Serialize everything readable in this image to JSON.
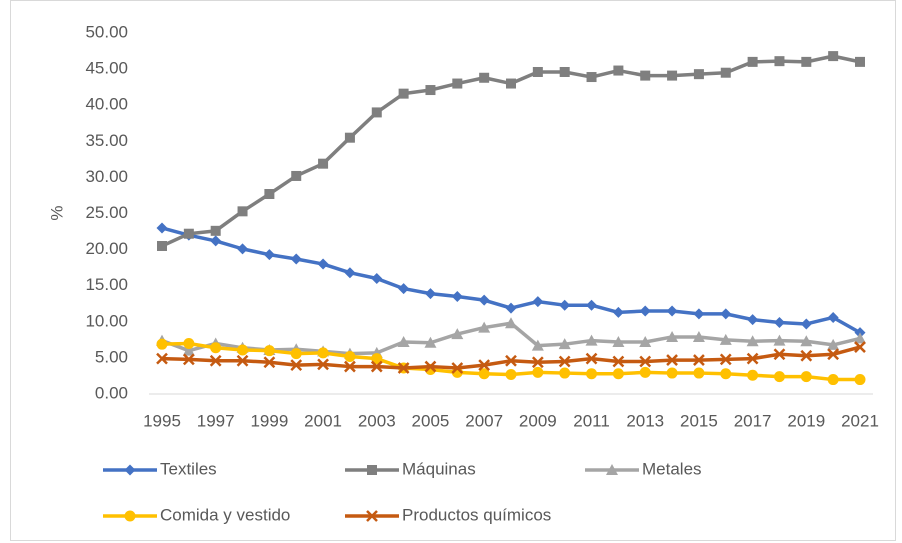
{
  "chart_data": {
    "type": "line",
    "y_label": "%",
    "categories": [
      "1995",
      null,
      "1997",
      null,
      "1999",
      null,
      "2001",
      null,
      "2003",
      null,
      "2005",
      null,
      "2007",
      null,
      "2009",
      null,
      "2011",
      null,
      "2013",
      null,
      "2015",
      null,
      "2017",
      null,
      "2019",
      null,
      "2021"
    ],
    "ylim": [
      0,
      50
    ],
    "yticks": [
      {
        "value": 0,
        "label": "0.00"
      },
      {
        "value": 5,
        "label": "5.00"
      },
      {
        "value": 10,
        "label": "10.00"
      },
      {
        "value": 15,
        "label": "15.00"
      },
      {
        "value": 20,
        "label": "20.00"
      },
      {
        "value": 25,
        "label": "25.00"
      },
      {
        "value": 30,
        "label": "30.00"
      },
      {
        "value": 35,
        "label": "35.00"
      },
      {
        "value": 40,
        "label": "40.00"
      },
      {
        "value": 45,
        "label": "45.00"
      },
      {
        "value": 50,
        "label": "50.00"
      }
    ],
    "legend": "bottom",
    "series": [
      {
        "name": "Textiles",
        "color": "#4472c4",
        "marker": "diamond",
        "values": [
          23.0,
          22.0,
          21.2,
          20.1,
          19.3,
          18.7,
          18.0,
          16.8,
          16.0,
          14.6,
          13.9,
          13.5,
          13.0,
          11.9,
          12.8,
          12.3,
          12.3,
          11.3,
          11.5,
          11.5,
          11.1,
          11.1,
          10.3,
          9.9,
          9.7,
          10.6,
          8.5
        ]
      },
      {
        "name": "Máquinas",
        "color": "#7f7f7f",
        "marker": "square",
        "values": [
          20.5,
          22.2,
          22.6,
          25.3,
          27.7,
          30.2,
          31.9,
          35.5,
          39.0,
          41.6,
          42.1,
          43.0,
          43.8,
          43.0,
          44.6,
          44.6,
          43.9,
          44.8,
          44.1,
          44.1,
          44.3,
          44.5,
          46.0,
          46.1,
          46.0,
          46.8,
          46.0
        ]
      },
      {
        "name": "Metales",
        "color": "#a5a5a5",
        "marker": "triangle",
        "values": [
          7.4,
          6.0,
          7.0,
          6.4,
          6.1,
          6.2,
          5.9,
          5.6,
          5.7,
          7.2,
          7.1,
          8.3,
          9.2,
          9.8,
          6.7,
          6.9,
          7.4,
          7.2,
          7.2,
          7.9,
          7.9,
          7.5,
          7.3,
          7.4,
          7.3,
          6.8,
          7.7
        ]
      },
      {
        "name": "Comida y vestido",
        "color": "#ffc000",
        "marker": "circle",
        "values": [
          6.9,
          7.0,
          6.4,
          6.1,
          6.0,
          5.6,
          5.7,
          5.2,
          4.9,
          3.6,
          3.4,
          3.0,
          2.8,
          2.7,
          3.0,
          2.9,
          2.8,
          2.8,
          3.0,
          2.9,
          2.9,
          2.8,
          2.6,
          2.4,
          2.4,
          2.0,
          2.0
        ]
      },
      {
        "name": "Productos químicos",
        "color": "#c55a11",
        "marker": "x",
        "values": [
          4.9,
          4.8,
          4.6,
          4.6,
          4.4,
          4.0,
          4.1,
          3.8,
          3.8,
          3.6,
          3.8,
          3.6,
          4.0,
          4.6,
          4.4,
          4.5,
          4.9,
          4.5,
          4.5,
          4.7,
          4.7,
          4.8,
          4.9,
          5.5,
          5.3,
          5.5,
          6.5
        ]
      }
    ]
  }
}
